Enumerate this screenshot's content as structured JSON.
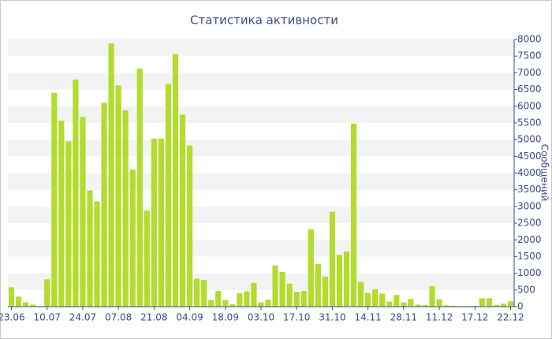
{
  "chart_data": {
    "type": "bar",
    "title": "Статистика активности",
    "y_label": "Сообщений",
    "categories": [
      "23.06",
      null,
      null,
      null,
      null,
      "10.07",
      null,
      null,
      null,
      null,
      "24.07",
      null,
      null,
      null,
      null,
      "07.08",
      null,
      null,
      null,
      null,
      "21.08",
      null,
      null,
      null,
      null,
      "04.09",
      null,
      null,
      null,
      null,
      "18.09",
      null,
      null,
      null,
      null,
      "03.10",
      null,
      null,
      null,
      null,
      "17.10",
      null,
      null,
      null,
      null,
      "31.10",
      null,
      null,
      null,
      null,
      "14.11",
      null,
      null,
      null,
      null,
      "28.11",
      null,
      null,
      null,
      null,
      "11.12",
      null,
      null,
      null,
      null,
      "17.12",
      null,
      null,
      null,
      null,
      "22.12"
    ],
    "values": [
      580,
      300,
      130,
      60,
      20,
      820,
      6400,
      5570,
      4950,
      6800,
      5680,
      3480,
      3150,
      6100,
      7880,
      6620,
      5880,
      4100,
      7130,
      2870,
      5030,
      5030,
      6670,
      7560,
      5750,
      4820,
      840,
      800,
      200,
      470,
      200,
      70,
      400,
      460,
      710,
      130,
      210,
      1230,
      1040,
      690,
      450,
      470,
      2320,
      1280,
      900,
      2840,
      1550,
      1650,
      5480,
      740,
      410,
      520,
      390,
      150,
      350,
      130,
      230,
      60,
      50,
      610,
      220,
      40,
      30,
      20,
      20,
      30,
      250,
      250,
      50,
      90,
      160
    ],
    "color": "#b3dc2c",
    "ylim": [
      0,
      8000
    ],
    "yticks": [
      0,
      500,
      1000,
      1500,
      2000,
      2500,
      3000,
      3500,
      4000,
      4500,
      5000,
      5500,
      6000,
      6500,
      7000,
      7500,
      8000
    ],
    "grid": true
  }
}
